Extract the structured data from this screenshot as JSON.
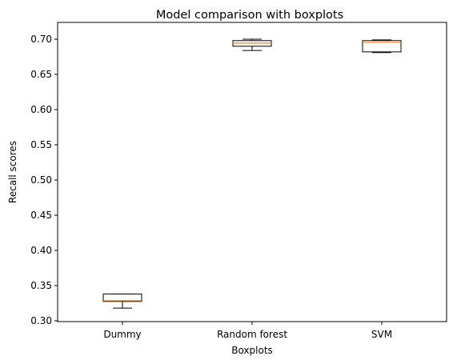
{
  "chart_data": {
    "type": "boxplot",
    "title": "Model comparison with boxplots",
    "xlabel": "Boxplots",
    "ylabel": "Recall scores",
    "ylim": [
      0.3,
      0.72
    ],
    "yticks": [
      "0.30",
      "0.35",
      "0.40",
      "0.45",
      "0.50",
      "0.55",
      "0.60",
      "0.65",
      "0.70"
    ],
    "grid": false,
    "box_color": "#000000",
    "median_color": "#ff7f0e",
    "categories": [
      "Dummy",
      "Random forest",
      "SVM"
    ],
    "boxes": [
      {
        "whisker_low": 0.318,
        "q1": 0.3275,
        "median": 0.3285,
        "q3": 0.338,
        "whisker_high": 0.338
      },
      {
        "whisker_low": 0.684,
        "q1": 0.69,
        "median": 0.6945,
        "q3": 0.698,
        "whisker_high": 0.7
      },
      {
        "whisker_low": 0.681,
        "q1": 0.682,
        "median": 0.6955,
        "q3": 0.698,
        "whisker_high": 0.699
      }
    ]
  }
}
